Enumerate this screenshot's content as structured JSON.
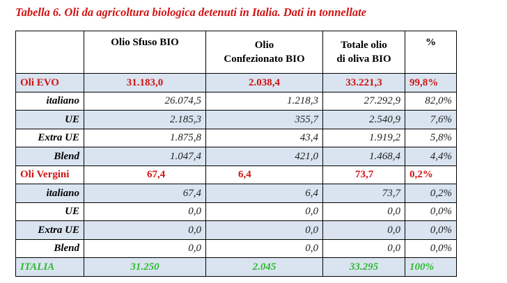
{
  "caption": "Tabella 6. Oli da agricoltura biologica detenuti in Italia. Dati in tonnellate",
  "headers": {
    "c0": "",
    "c1": "Olio Sfuso BIO",
    "c2_line1": "Olio",
    "c2_line2": "Confezionato BIO",
    "c3_line1": "Totale olio",
    "c3_line2": "di oliva BIO",
    "c4": "%"
  },
  "groups": [
    {
      "label": "Oli EVO",
      "values": [
        "31.183,0",
        "2.038,4",
        "33.221,3",
        "99,8%"
      ],
      "rows": [
        {
          "label": "italiano",
          "values": [
            "26.074,5",
            "1.218,3",
            "27.292,9",
            "82,0%"
          ]
        },
        {
          "label": "UE",
          "values": [
            "2.185,3",
            "355,7",
            "2.540,9",
            "7,6%"
          ]
        },
        {
          "label": "Extra UE",
          "values": [
            "1.875,8",
            "43,4",
            "1.919,2",
            "5,8%"
          ]
        },
        {
          "label": "Blend",
          "values": [
            "1.047,4",
            "421,0",
            "1.468,4",
            "4,4%"
          ]
        }
      ]
    },
    {
      "label": "Oli Vergini",
      "values": [
        "67,4",
        "6,4",
        "73,7",
        "0,2%"
      ],
      "rows": [
        {
          "label": "italiano",
          "values": [
            "67,4",
            "6,4",
            "73,7",
            "0,2%"
          ]
        },
        {
          "label": "UE",
          "values": [
            "0,0",
            "0,0",
            "0,0",
            "0,0%"
          ]
        },
        {
          "label": "Extra UE",
          "values": [
            "0,0",
            "0,0",
            "0,0",
            "0,0%"
          ]
        },
        {
          "label": "Blend",
          "values": [
            "0,0",
            "0,0",
            "0,0",
            "0,0%"
          ]
        }
      ]
    }
  ],
  "total": {
    "label": "ITALIA",
    "values": [
      "31.250",
      "2.045",
      "33.295",
      "100%"
    ]
  },
  "colors": {
    "group_text": "#d01414",
    "total_text": "#2eb82e",
    "shade": "#d9e4f0"
  }
}
